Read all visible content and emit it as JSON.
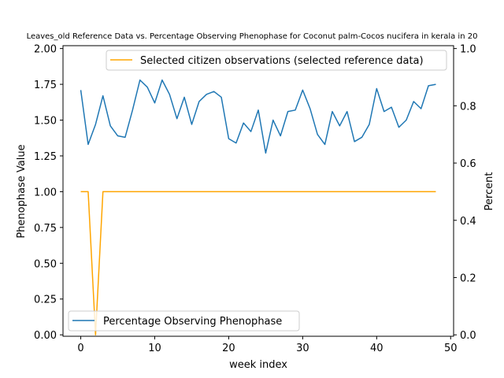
{
  "chart_data": {
    "type": "line",
    "title": "Leaves_old Reference Data vs. Percentage Observing Phenophase for Coconut palm-Cocos nucifera in kerala in 20",
    "xlabel": "week index",
    "ylabel_left": "Phenophase Value",
    "ylabel_right": "Percent",
    "xlim": [
      -2.4,
      50.4
    ],
    "ylim_left": [
      -0.01,
      2.02
    ],
    "ylim_right": [
      -0.005,
      1.01
    ],
    "x_ticks": [
      0,
      10,
      20,
      30,
      40,
      50
    ],
    "y_ticks_left": [
      0.0,
      0.25,
      0.5,
      0.75,
      1.0,
      1.25,
      1.5,
      1.75,
      2.0
    ],
    "y_ticks_right": [
      0.0,
      0.2,
      0.4,
      0.6,
      0.8,
      1.0
    ],
    "grid": false,
    "series": [
      {
        "name": "Percentage Observing Phenophase",
        "axis": "left",
        "color": "#1f77b4",
        "x": [
          0,
          1,
          2,
          3,
          4,
          5,
          6,
          7,
          8,
          9,
          10,
          11,
          12,
          13,
          14,
          15,
          16,
          17,
          18,
          19,
          20,
          21,
          22,
          23,
          24,
          25,
          26,
          27,
          28,
          29,
          30,
          31,
          32,
          33,
          34,
          35,
          36,
          37,
          38,
          39,
          40,
          41,
          42,
          43,
          44,
          45,
          46,
          47,
          48
        ],
        "values": [
          1.71,
          1.33,
          1.47,
          1.67,
          1.46,
          1.39,
          1.38,
          1.57,
          1.78,
          1.73,
          1.62,
          1.78,
          1.68,
          1.51,
          1.66,
          1.47,
          1.63,
          1.68,
          1.7,
          1.66,
          1.37,
          1.34,
          1.48,
          1.42,
          1.57,
          1.27,
          1.5,
          1.39,
          1.56,
          1.57,
          1.71,
          1.58,
          1.4,
          1.33,
          1.56,
          1.46,
          1.56,
          1.35,
          1.38,
          1.47,
          1.72,
          1.56,
          1.59,
          1.45,
          1.5,
          1.63,
          1.58,
          1.74,
          1.75
        ]
      },
      {
        "name": "Selected citizen observations (selected reference data)",
        "axis": "left",
        "color": "#ffa500",
        "x": [
          0,
          1,
          2,
          3,
          4,
          5,
          6,
          7,
          8,
          9,
          10,
          11,
          12,
          13,
          14,
          15,
          16,
          17,
          18,
          19,
          20,
          21,
          22,
          23,
          24,
          25,
          26,
          27,
          28,
          29,
          30,
          31,
          32,
          33,
          34,
          35,
          36,
          37,
          38,
          39,
          40,
          41,
          42,
          43,
          44,
          45,
          46,
          47,
          48
        ],
        "values": [
          1,
          1,
          0,
          1,
          1,
          1,
          1,
          1,
          1,
          1,
          1,
          1,
          1,
          1,
          1,
          1,
          1,
          1,
          1,
          1,
          1,
          1,
          1,
          1,
          1,
          1,
          1,
          1,
          1,
          1,
          1,
          1,
          1,
          1,
          1,
          1,
          1,
          1,
          1,
          1,
          1,
          1,
          1,
          1,
          1,
          1,
          1,
          1,
          1
        ]
      }
    ],
    "legends": [
      {
        "placement": "upper-right",
        "entries": [
          "Selected citizen observations (selected reference data)"
        ]
      },
      {
        "placement": "lower-left",
        "entries": [
          "Percentage Observing Phenophase"
        ]
      }
    ]
  }
}
